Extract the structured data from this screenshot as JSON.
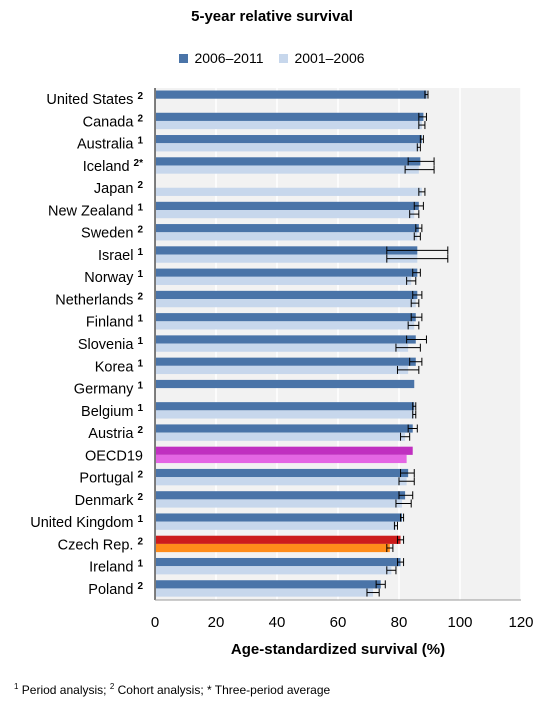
{
  "chart_data": {
    "type": "bar",
    "orientation": "horizontal",
    "title": "5-year relative survival",
    "xlabel": "Age-standardized survival (%)",
    "ylabel": "",
    "xlim": [
      0,
      120
    ],
    "ticks": [
      0,
      20,
      40,
      60,
      80,
      100,
      120
    ],
    "grid": true,
    "legend_position": "top",
    "series": [
      {
        "name": "2006–2011",
        "color": "#4a74a8"
      },
      {
        "name": "2001–2006",
        "color": "#c7d7ec"
      }
    ],
    "categories": [
      {
        "name": "United States",
        "sup": "2",
        "v1": 89.0,
        "e1": [
          88.5,
          89.5
        ],
        "v2": null,
        "e2": null
      },
      {
        "name": "Canada",
        "sup": "2",
        "v1": 88.0,
        "e1": [
          86.5,
          89.0
        ],
        "v2": 87.5,
        "e2": [
          86.5,
          88.5
        ]
      },
      {
        "name": "Australia",
        "sup": "1",
        "v1": 87.5,
        "e1": [
          87.0,
          88.0
        ],
        "v2": 86.5,
        "e2": [
          86.0,
          87.0
        ]
      },
      {
        "name": "Iceland",
        "sup": "2*",
        "v1": 87.0,
        "e1": [
          83.0,
          91.5
        ],
        "v2": 86.5,
        "e2": [
          82.0,
          91.5
        ]
      },
      {
        "name": "Japan",
        "sup": "2",
        "v1": null,
        "e1": null,
        "v2": 87.5,
        "e2": [
          86.5,
          88.5
        ]
      },
      {
        "name": "New Zealand",
        "sup": "1",
        "v1": 86.5,
        "e1": [
          85.0,
          88.0
        ],
        "v2": 85.0,
        "e2": [
          83.5,
          86.5
        ]
      },
      {
        "name": "Sweden",
        "sup": "2",
        "v1": 86.5,
        "e1": [
          85.5,
          87.5
        ],
        "v2": 86.0,
        "e2": [
          85.0,
          87.0
        ]
      },
      {
        "name": "Israel",
        "sup": "1",
        "v1": 86.0,
        "e1": [
          76.0,
          96.0
        ],
        "v2": 86.0,
        "e2": [
          76.0,
          96.0
        ]
      },
      {
        "name": "Norway",
        "sup": "1",
        "v1": 86.0,
        "e1": [
          84.5,
          87.0
        ],
        "v2": 84.0,
        "e2": [
          82.5,
          85.5
        ]
      },
      {
        "name": "Netherlands",
        "sup": "2",
        "v1": 86.0,
        "e1": [
          84.5,
          87.5
        ],
        "v2": 85.5,
        "e2": [
          84.0,
          86.5
        ]
      },
      {
        "name": "Finland",
        "sup": "1",
        "v1": 85.5,
        "e1": [
          84.0,
          87.5
        ],
        "v2": 85.0,
        "e2": [
          83.0,
          86.5
        ]
      },
      {
        "name": "Slovenia",
        "sup": "1",
        "v1": 85.5,
        "e1": [
          82.5,
          89.0
        ],
        "v2": 83.0,
        "e2": [
          79.0,
          87.0
        ]
      },
      {
        "name": "Korea",
        "sup": "1",
        "v1": 85.5,
        "e1": [
          83.5,
          87.5
        ],
        "v2": 83.0,
        "e2": [
          79.5,
          86.5
        ]
      },
      {
        "name": "Germany",
        "sup": "1",
        "v1": 85.0,
        "e1": null,
        "v2": null,
        "e2": null
      },
      {
        "name": "Belgium",
        "sup": "1",
        "v1": 85.0,
        "e1": [
          84.5,
          85.5
        ],
        "v2": 85.0,
        "e2": [
          84.5,
          85.5
        ]
      },
      {
        "name": "Austria",
        "sup": "2",
        "v1": 84.5,
        "e1": [
          83.0,
          86.0
        ],
        "v2": 82.0,
        "e2": [
          80.5,
          83.5
        ]
      },
      {
        "name": "OECD19",
        "sup": "",
        "v1": 84.5,
        "e1": null,
        "v2": 82.5,
        "e2": null,
        "c1": "#c030c0",
        "c2": "#e466e4"
      },
      {
        "name": "Portugal",
        "sup": "2",
        "v1": 83.0,
        "e1": [
          80.5,
          85.0
        ],
        "v2": 82.5,
        "e2": [
          80.0,
          85.0
        ]
      },
      {
        "name": "Denmark",
        "sup": "2",
        "v1": 82.0,
        "e1": [
          80.0,
          84.5
        ],
        "v2": 81.0,
        "e2": [
          79.0,
          84.0
        ]
      },
      {
        "name": "United Kingdom",
        "sup": "1",
        "v1": 81.0,
        "e1": [
          80.5,
          81.5
        ],
        "v2": 79.0,
        "e2": [
          78.5,
          79.5
        ]
      },
      {
        "name": "Czech Rep.",
        "sup": "2",
        "v1": 80.5,
        "e1": [
          79.5,
          81.5
        ],
        "v2": 77.0,
        "e2": [
          76.0,
          78.0
        ],
        "c1": "#cc1c1c",
        "c2": "#ff8c1a"
      },
      {
        "name": "Ireland",
        "sup": "1",
        "v1": 80.5,
        "e1": [
          79.5,
          81.5
        ],
        "v2": 77.5,
        "e2": [
          76.0,
          79.0
        ]
      },
      {
        "name": "Poland",
        "sup": "2",
        "v1": 74.0,
        "e1": [
          72.5,
          75.5
        ],
        "v2": 71.5,
        "e2": [
          69.5,
          73.5
        ]
      }
    ]
  },
  "footnote": {
    "sup1": "1",
    "text1": " Period analysis; ",
    "sup2": "2",
    "text2": " Cohort analysis; ",
    "star": "*",
    "text3": " Three-period average"
  }
}
